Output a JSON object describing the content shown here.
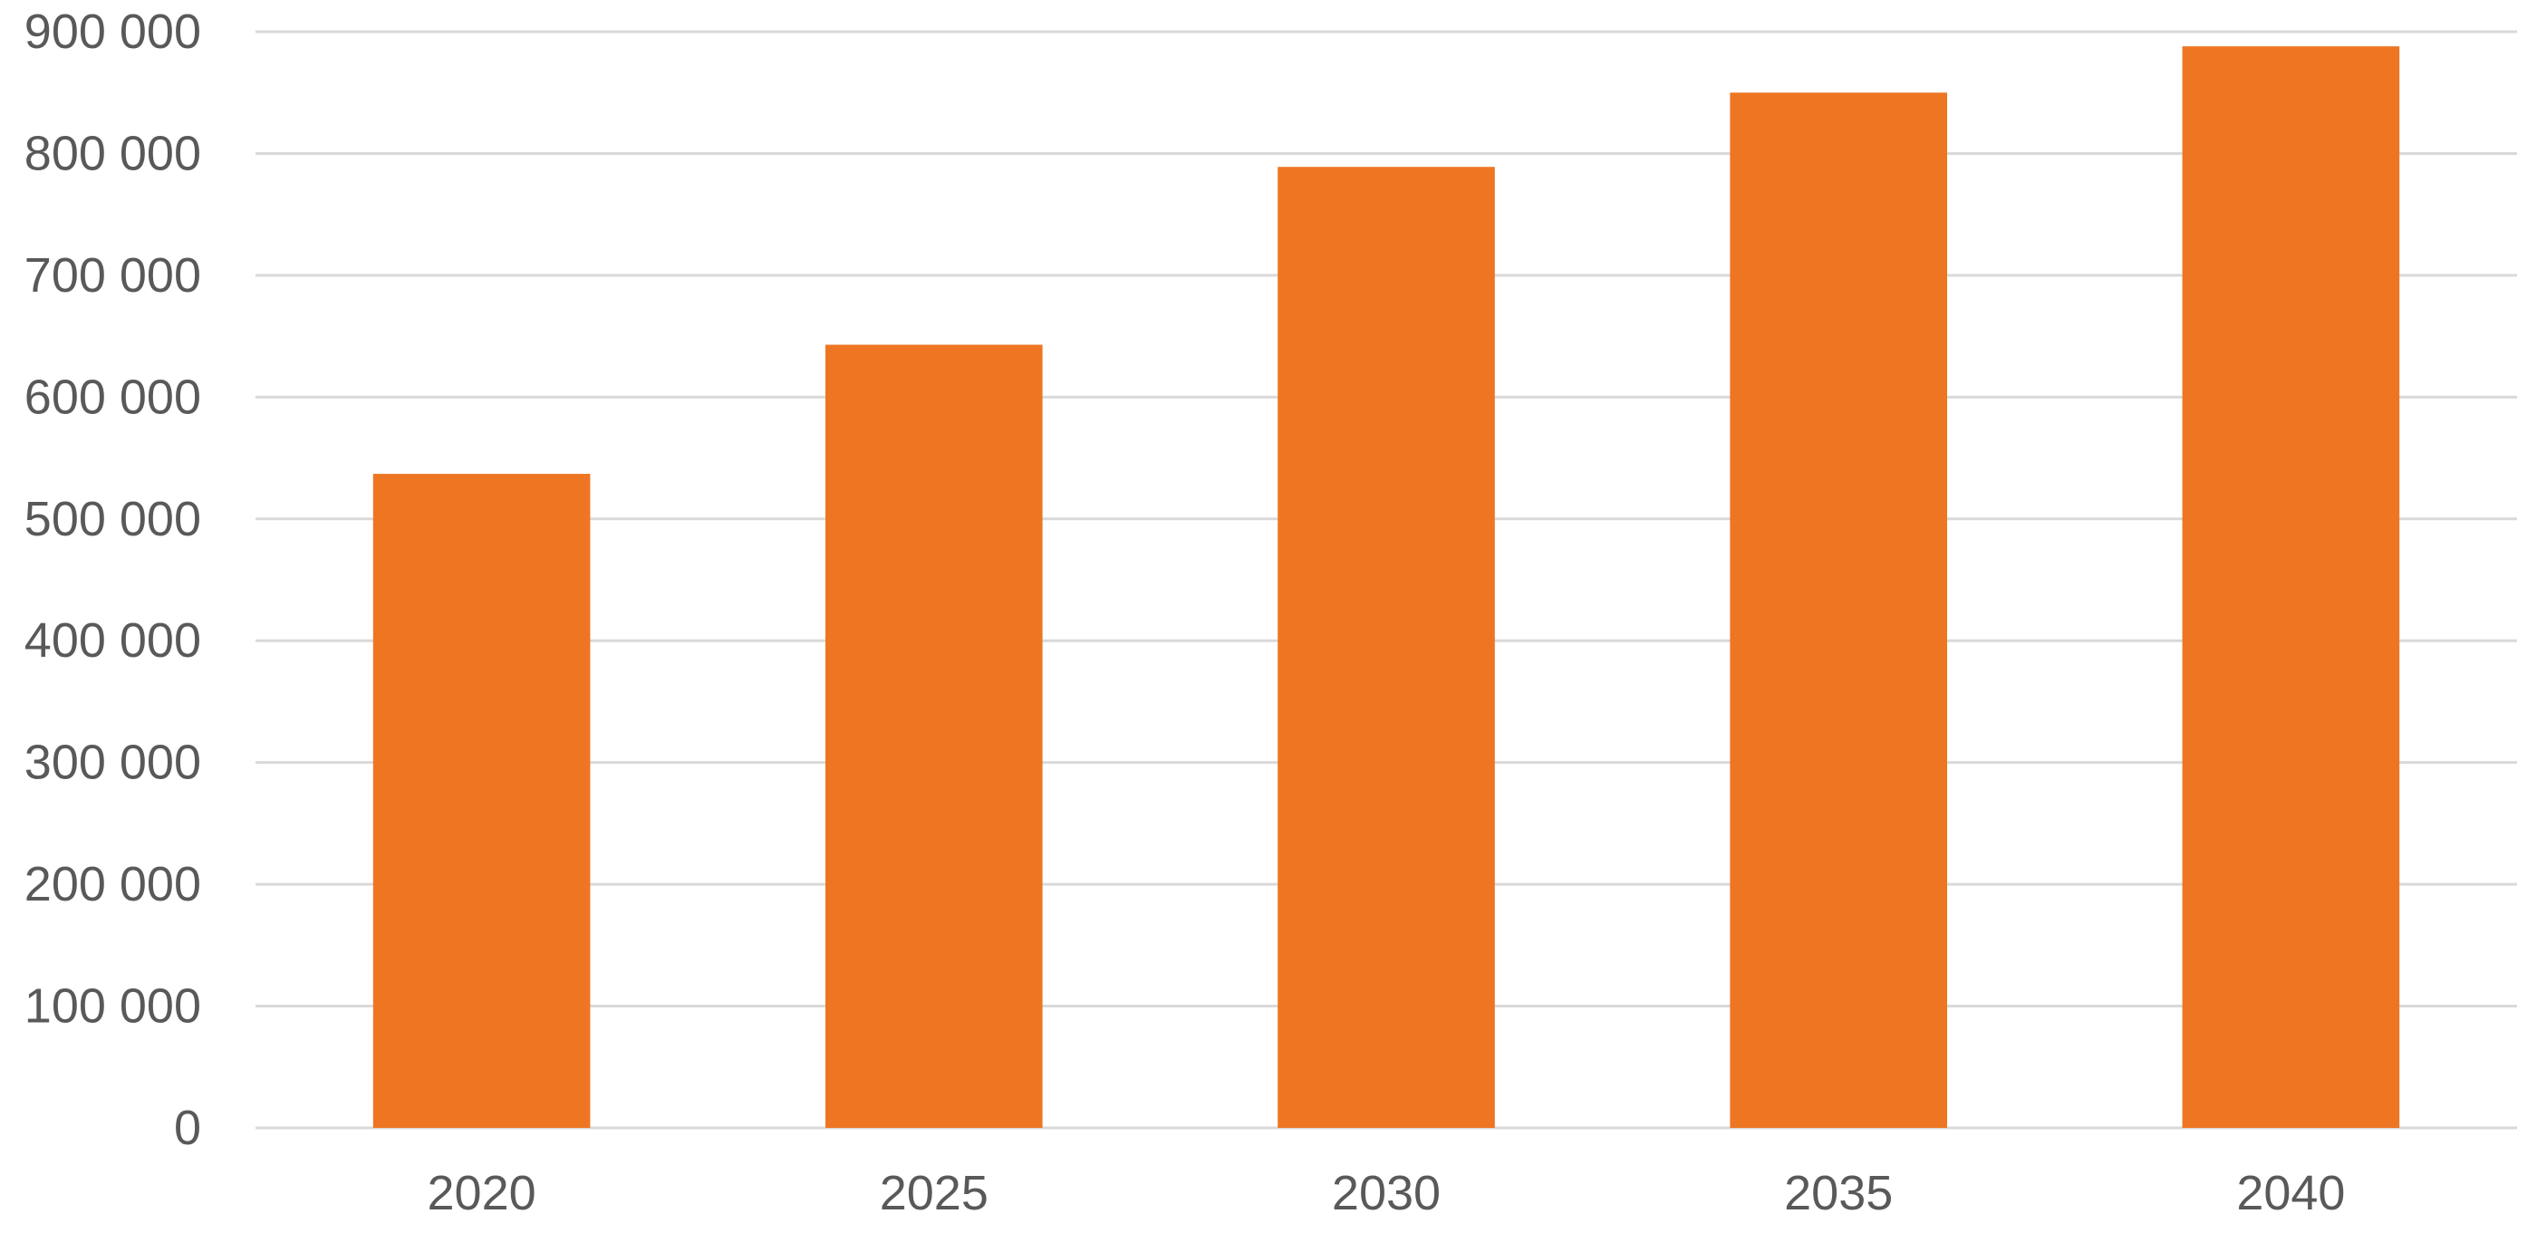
{
  "chart_data": {
    "type": "bar",
    "title": "",
    "xlabel": "",
    "ylabel": "",
    "categories": [
      "2020",
      "2025",
      "2030",
      "2035",
      "2040"
    ],
    "values": [
      537000,
      643000,
      789000,
      850000,
      888000
    ],
    "ylim": [
      0,
      900000
    ],
    "yticks": [
      0,
      100000,
      200000,
      300000,
      400000,
      500000,
      600000,
      700000,
      800000,
      900000
    ],
    "ytick_labels": [
      "0",
      "100 000",
      "200 000",
      "300 000",
      "400 000",
      "500 000",
      "600 000",
      "700 000",
      "800 000",
      "900 000"
    ],
    "grid": true,
    "legend": "none",
    "colors": {
      "bar": "#ee7623",
      "grid": "#d9d9d9",
      "text": "#595959"
    }
  }
}
